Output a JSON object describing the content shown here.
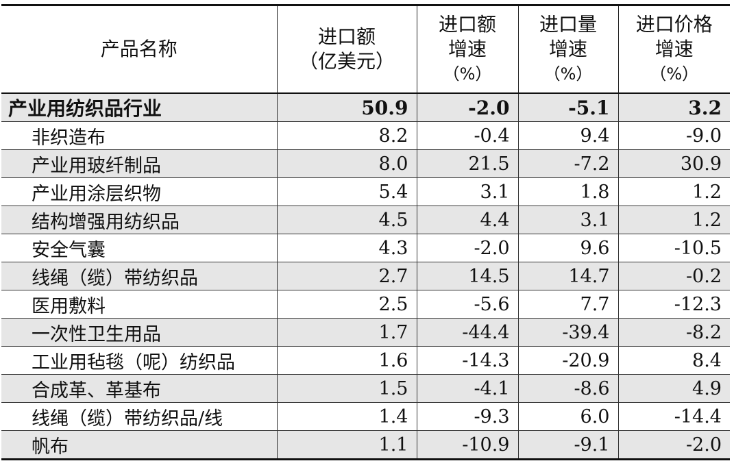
{
  "table": {
    "headers": {
      "name": "产品名称",
      "import_value": [
        "进口额",
        "（亿美元）"
      ],
      "import_value_growth": [
        "进口额",
        "增速",
        "（%）"
      ],
      "import_volume_growth": [
        "进口量",
        "增速",
        "（%）"
      ],
      "import_price_growth": [
        "进口价格",
        "增速",
        "（%）"
      ]
    },
    "rows": [
      [
        "产业用纺织品行业",
        "50.9",
        "-2.0",
        "-5.1",
        "3.2"
      ],
      [
        "非织造布",
        "8.2",
        "-0.4",
        "9.4",
        "-9.0"
      ],
      [
        "产业用玻纤制品",
        "8.0",
        "21.5",
        "-7.2",
        "30.9"
      ],
      [
        "产业用涂层织物",
        "5.4",
        "3.1",
        "1.8",
        "1.2"
      ],
      [
        "结构增强用纺织品",
        "4.5",
        "4.4",
        "3.1",
        "1.2"
      ],
      [
        "安全气囊",
        "4.3",
        "-2.0",
        "9.6",
        "-10.5"
      ],
      [
        "线绳（缆）带纺织品",
        "2.7",
        "14.5",
        "14.7",
        "-0.2"
      ],
      [
        "医用敷料",
        "2.5",
        "-5.6",
        "7.7",
        "-12.3"
      ],
      [
        "一次性卫生用品",
        "1.7",
        "-44.4",
        "-39.4",
        "-8.2"
      ],
      [
        "工业用毡毯（呢）纺织品",
        "1.6",
        "-14.3",
        "-20.9",
        "8.4"
      ],
      [
        "合成革、革基布",
        "1.5",
        "-4.1",
        "-8.6",
        "4.9"
      ],
      [
        "线绳（缆）带纺织品/线",
        "1.4",
        "-9.3",
        "6.0",
        "-14.4"
      ],
      [
        "帆布",
        "1.1",
        "-10.9",
        "-9.1",
        "-2.0"
      ]
    ]
  }
}
